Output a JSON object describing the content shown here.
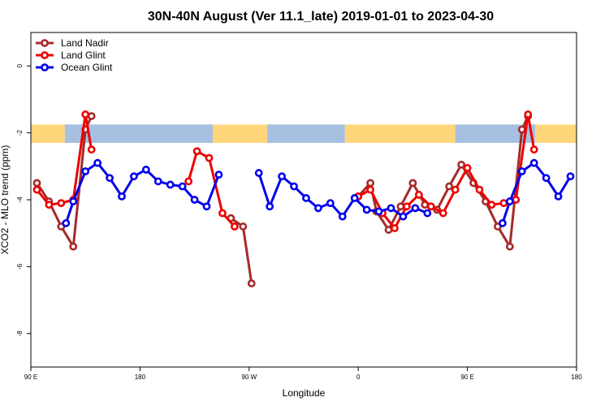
{
  "chart_data": {
    "type": "line",
    "title": "30N-40N August (Ver 11.1_late)   2019-01-01 to 2023-04-30",
    "xlabel": "Longitude",
    "ylabel": "XCO2 - MLO trend (ppm)",
    "xlim": [
      90,
      540
    ],
    "ylim": [
      -9,
      1
    ],
    "x_ticks": [
      {
        "value": 90,
        "label": "90 E"
      },
      {
        "value": 180,
        "label": "180"
      },
      {
        "value": 270,
        "label": "90 W"
      },
      {
        "value": 360,
        "label": "0"
      },
      {
        "value": 450,
        "label": "90 E"
      },
      {
        "value": 540,
        "label": "180"
      }
    ],
    "y_ticks": [
      {
        "value": 0,
        "label": "0"
      },
      {
        "value": -2,
        "label": "-2"
      },
      {
        "value": -4,
        "label": "-4"
      },
      {
        "value": -6,
        "label": "-6"
      },
      {
        "value": -8,
        "label": "-8"
      }
    ],
    "land_ocean_band": {
      "y_top": -1.75,
      "y_bottom": -2.3,
      "land_color": "#ffd77a",
      "ocean_color": "#a7bfe0",
      "segments": [
        {
          "x0": 90,
          "x1": 118,
          "kind": "land"
        },
        {
          "x0": 118,
          "x1": 240,
          "kind": "ocean"
        },
        {
          "x0": 240,
          "x1": 285,
          "kind": "land"
        },
        {
          "x0": 285,
          "x1": 349,
          "kind": "ocean"
        },
        {
          "x0": 349,
          "x1": 440,
          "kind": "land"
        },
        {
          "x0": 440,
          "x1": 506,
          "kind": "ocean"
        },
        {
          "x0": 506,
          "x1": 540,
          "kind": "land"
        }
      ]
    },
    "legend": {
      "position": "top-left"
    },
    "series": [
      {
        "name": "Land Nadir",
        "color": "#a52a2a",
        "segments": [
          [
            [
              95,
              -3.5
            ],
            [
              105,
              -4.05
            ],
            [
              115,
              -4.8
            ],
            [
              125,
              -5.4
            ],
            [
              135,
              -1.9
            ],
            [
              140,
              -1.5
            ]
          ],
          [
            [
              255,
              -4.55
            ],
            [
              265,
              -4.8
            ],
            [
              272,
              -6.5
            ]
          ],
          [
            [
              360,
              -3.9
            ],
            [
              370,
              -3.5
            ],
            [
              375,
              -4.35
            ],
            [
              385,
              -4.9
            ],
            [
              395,
              -4.2
            ],
            [
              405,
              -3.5
            ],
            [
              415,
              -4.15
            ],
            [
              425,
              -4.3
            ],
            [
              435,
              -3.6
            ],
            [
              445,
              -2.95
            ],
            [
              455,
              -3.5
            ],
            [
              465,
              -4.05
            ],
            [
              475,
              -4.8
            ],
            [
              485,
              -5.4
            ],
            [
              495,
              -1.9
            ],
            [
              500,
              -1.5
            ]
          ]
        ]
      },
      {
        "name": "Land Glint",
        "color": "#ee0000",
        "segments": [
          [
            [
              95,
              -3.7
            ],
            [
              105,
              -4.15
            ],
            [
              115,
              -4.1
            ],
            [
              125,
              -4.0
            ],
            [
              135,
              -1.45
            ],
            [
              140,
              -2.5
            ]
          ],
          [
            [
              220,
              -3.45
            ],
            [
              227,
              -2.55
            ],
            [
              237,
              -2.75
            ],
            [
              248,
              -4.4
            ],
            [
              258,
              -4.8
            ]
          ],
          [
            [
              360,
              -3.9
            ],
            [
              370,
              -3.7
            ],
            [
              380,
              -4.4
            ],
            [
              390,
              -4.85
            ],
            [
              400,
              -4.2
            ],
            [
              410,
              -3.85
            ],
            [
              420,
              -4.2
            ],
            [
              430,
              -4.4
            ],
            [
              440,
              -3.7
            ],
            [
              450,
              -3.05
            ],
            [
              460,
              -3.7
            ],
            [
              470,
              -4.15
            ],
            [
              480,
              -4.1
            ],
            [
              490,
              -4.0
            ],
            [
              500,
              -1.45
            ],
            [
              505,
              -2.5
            ]
          ]
        ]
      },
      {
        "name": "Ocean Glint",
        "color": "#0000ee",
        "segments": [
          [
            [
              119,
              -4.7
            ],
            [
              125,
              -4.05
            ],
            [
              135,
              -3.15
            ],
            [
              145,
              -2.9
            ],
            [
              155,
              -3.35
            ],
            [
              165,
              -3.9
            ],
            [
              175,
              -3.3
            ],
            [
              185,
              -3.1
            ],
            [
              195,
              -3.45
            ],
            [
              205,
              -3.55
            ],
            [
              215,
              -3.6
            ],
            [
              225,
              -4.0
            ],
            [
              235,
              -4.2
            ],
            [
              245,
              -3.25
            ]
          ],
          [
            [
              278,
              -3.2
            ],
            [
              287,
              -4.2
            ],
            [
              297,
              -3.3
            ],
            [
              307,
              -3.6
            ],
            [
              317,
              -3.95
            ],
            [
              327,
              -4.25
            ],
            [
              337,
              -4.1
            ],
            [
              347,
              -4.5
            ],
            [
              357,
              -3.95
            ],
            [
              367,
              -4.3
            ],
            [
              377,
              -4.35
            ],
            [
              387,
              -4.25
            ],
            [
              397,
              -4.5
            ],
            [
              407,
              -4.25
            ],
            [
              417,
              -4.4
            ]
          ],
          [
            [
              479,
              -4.7
            ],
            [
              485,
              -4.05
            ],
            [
              495,
              -3.15
            ],
            [
              505,
              -2.9
            ],
            [
              515,
              -3.35
            ],
            [
              525,
              -3.9
            ],
            [
              535,
              -3.3
            ]
          ]
        ]
      }
    ]
  }
}
